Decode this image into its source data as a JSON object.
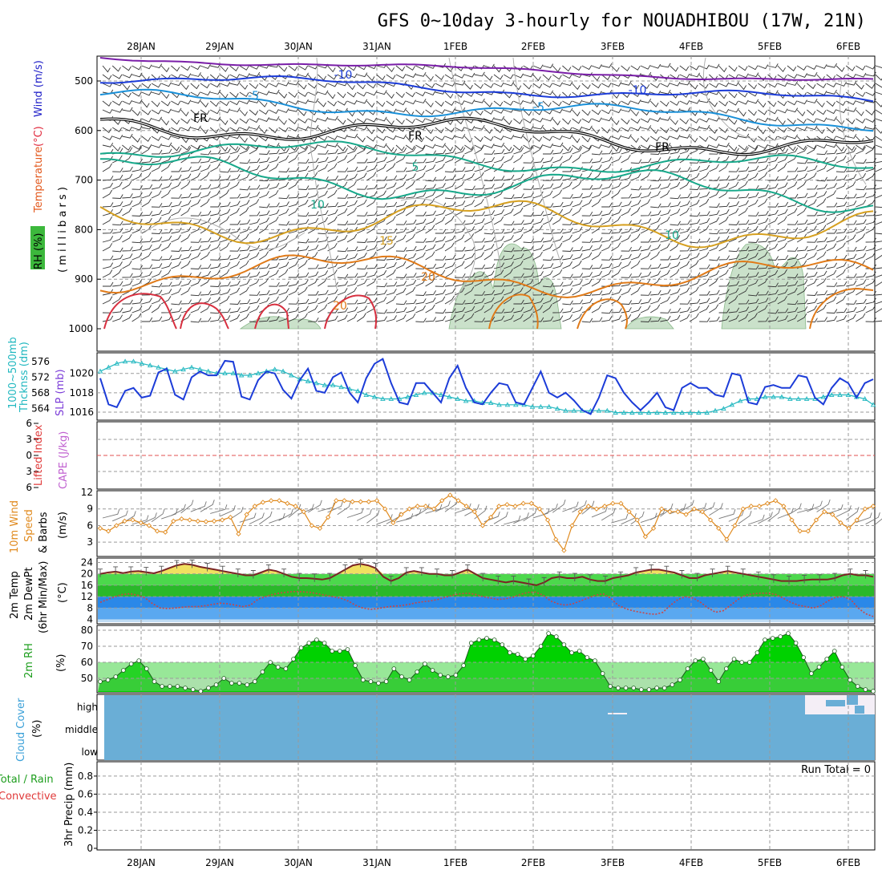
{
  "title": "GFS 0~10day 3-hourly for NOUADHIBOU (17W, 21N)",
  "dates": [
    "28JAN",
    "29JAN",
    "30JAN",
    "31JAN",
    "1FEB",
    "2FEB",
    "3FEB",
    "4FEB",
    "5FEB",
    "6FEB"
  ],
  "colors": {
    "grid": "#a0a0a0",
    "slp": "#1c3cd8",
    "thickness": "#22b8c0",
    "wind10m": "#e08a1e",
    "temp": "#7a2424",
    "dewpt": "#b04a32",
    "rh_dark": "#00d200",
    "rh_light": "#5fd85f",
    "cloud_bg": "#6aaed6",
    "cloud_white": "#f4eef6",
    "li_zero": "#e05050",
    "humid_shade": "#b8d7b8"
  },
  "panels": {
    "upper": {
      "labels": {
        "rh": "RH (%)",
        "temperature": "Temperature",
        "temp_unit": "(°C)",
        "wind": "Wind (m/s)",
        "axis": "( m i l l i b a r s )"
      },
      "y_ticks": [
        "500",
        "600",
        "700",
        "800",
        "900",
        "1000"
      ],
      "contour_labels": [
        {
          "text": "-10",
          "color": "#1c3cd8"
        },
        {
          "text": "-10",
          "color": "#1c3cd8"
        },
        {
          "text": "-5",
          "color": "#1a90d8"
        },
        {
          "text": "-5",
          "color": "#1a90d8"
        },
        {
          "text": "FR",
          "color": "#000000"
        },
        {
          "text": "FR",
          "color": "#000000"
        },
        {
          "text": "FR",
          "color": "#000000"
        },
        {
          "text": "5",
          "color": "#17a88a"
        },
        {
          "text": "10",
          "color": "#17a88a"
        },
        {
          "text": "10",
          "color": "#17a88a"
        },
        {
          "text": "15",
          "color": "#d6a020"
        },
        {
          "text": "20",
          "color": "#e07a18"
        },
        {
          "text": "20",
          "color": "#e07a18"
        }
      ]
    },
    "slp_thickness": {
      "labels": {
        "thickness": "1000~500mb",
        "thickness2": "Thcknss (dm)",
        "slp": "SLP (mb)"
      },
      "left_ticks": [
        "576",
        "572",
        "568",
        "564"
      ],
      "right_ticks": [
        "1020",
        "1018",
        "1016"
      ]
    },
    "cape_li": {
      "labels": {
        "li": "Lifted Index",
        "cape": "CAPE (J/kg)"
      },
      "y_ticks": [
        "6",
        "3",
        "0",
        "3",
        "6"
      ]
    },
    "wind10m": {
      "labels": {
        "l1": "10m Wind",
        "l2": "Speed",
        "l3": "& Barbs",
        "unit": "(m/s)"
      },
      "y_ticks": [
        "12",
        "9",
        "6",
        "3"
      ]
    },
    "temp2m": {
      "labels": {
        "l1": "2m Temp",
        "l2": "2m DewPt",
        "l3": "(6hr Min/Max)",
        "unit": "(°C)"
      },
      "y_ticks": [
        "24",
        "20",
        "16",
        "12",
        "8",
        "4"
      ]
    },
    "rh2m": {
      "labels": {
        "l1": "2m RH",
        "unit": "(%)"
      },
      "y_ticks": [
        "80",
        "70",
        "60",
        "50"
      ]
    },
    "cloud": {
      "labels": {
        "l1": "Cloud Cover",
        "unit": "(%)"
      },
      "levels": [
        "high",
        "middle",
        "low"
      ]
    },
    "precip": {
      "labels": {
        "l1": "Total / Rain",
        "l2": "Convective",
        "l3": "3hr Precip (mm)"
      },
      "y_ticks": [
        "0.8",
        "0.6",
        "0.4",
        "0.2",
        "0"
      ],
      "run_total": "Run Total = 0"
    }
  },
  "chart_data": [
    {
      "type": "line",
      "title": "GFS 0~10day 3-hourly for NOUADHIBOU (17W, 21N)",
      "ylabel": "SLP (mb)",
      "series": [
        {
          "name": "SLP (mb)",
          "values": [
            1019.5,
            1016.8,
            1016.5,
            1018.2,
            1018.5,
            1017.5,
            1017.7,
            1020.1,
            1020.5,
            1017.8,
            1017.3,
            1019.6,
            1020.2,
            1019.8,
            1019.8,
            1021.3,
            1021.2,
            1017.6,
            1017.3,
            1019.3,
            1020.2,
            1020.0,
            1018.3,
            1017.4,
            1019.3,
            1020.5,
            1018.2,
            1018.0,
            1019.6,
            1020.1,
            1018.0,
            1017.0,
            1019.5,
            1021.0,
            1021.5,
            1019.0,
            1017.0,
            1016.8,
            1019.0,
            1019.0,
            1018.0,
            1017.0,
            1019.5,
            1020.8,
            1018.5,
            1017.0,
            1016.8,
            1018.0,
            1019.0,
            1018.8,
            1017.0,
            1016.8,
            1018.5,
            1020.2,
            1018.0,
            1017.5,
            1018.0,
            1017.2,
            1016.2,
            1015.8,
            1017.5,
            1019.8,
            1019.5,
            1018.0,
            1017.0,
            1016.2,
            1017.0,
            1018.0,
            1016.5,
            1016.2,
            1018.5,
            1019.0,
            1018.5,
            1018.5,
            1017.8,
            1017.6,
            1020.0,
            1019.8,
            1017.0,
            1016.8,
            1018.6,
            1018.8,
            1018.5,
            1018.5,
            1019.8,
            1019.6,
            1017.5,
            1016.8,
            1018.5,
            1019.5,
            1019.0,
            1017.5,
            1019.0,
            1019.4
          ]
        },
        {
          "name": "1000~500mb Thcknss (dm)",
          "values": [
            573.5,
            574.5,
            575.5,
            576.0,
            576.0,
            575.5,
            575.0,
            574.5,
            574.0,
            573.5,
            574.0,
            574.5,
            574.0,
            573.5,
            573.0,
            573.0,
            573.0,
            572.5,
            572.5,
            573.0,
            573.5,
            574.0,
            573.5,
            572.5,
            571.5,
            571.0,
            570.5,
            570.0,
            570.0,
            569.5,
            569.0,
            568.5,
            567.5,
            567.0,
            566.5,
            566.5,
            566.5,
            567.0,
            567.5,
            568.0,
            568.0,
            567.5,
            567.0,
            566.5,
            566.0,
            566.0,
            565.5,
            565.5,
            565.0,
            565.0,
            565.0,
            565.0,
            564.5,
            564.5,
            564.5,
            564.0,
            563.5,
            563.5,
            563.5,
            563.5,
            563.5,
            563.5,
            563.0,
            563.0,
            563.0,
            563.0,
            563.0,
            563.0,
            563.0,
            563.0,
            563.0,
            563.0,
            563.0,
            563.0,
            563.5,
            564.0,
            565.0,
            566.0,
            566.5,
            566.5,
            567.0,
            567.0,
            567.0,
            566.5,
            566.5,
            566.5,
            566.5,
            567.0,
            567.5,
            567.5,
            567.5,
            567.0,
            566.5,
            565.0
          ]
        }
      ],
      "ylim": [
        1015.5,
        1021.8
      ],
      "y2lim": [
        561.5,
        578.0
      ]
    },
    {
      "type": "line",
      "title": "",
      "ylabel": "Lifted Index / CAPE (J/kg)",
      "series": [],
      "ylim": [
        -6,
        6
      ]
    },
    {
      "type": "line",
      "title": "",
      "ylabel": "10m Wind Speed (m/s)",
      "series": [
        {
          "name": "10m Wind Speed",
          "values": [
            5.5,
            5.0,
            6.0,
            6.8,
            7.0,
            6.5,
            6.0,
            5.0,
            4.8,
            6.8,
            7.2,
            7.0,
            6.8,
            6.7,
            6.8,
            7.0,
            7.5,
            4.5,
            8.0,
            9.5,
            10.2,
            10.5,
            10.5,
            10.0,
            9.5,
            8.5,
            6.0,
            5.5,
            7.5,
            10.5,
            10.5,
            10.3,
            10.3,
            10.3,
            10.5,
            9.0,
            6.5,
            8.0,
            9.0,
            9.5,
            9.5,
            9.0,
            10.5,
            11.5,
            10.5,
            9.5,
            8.5,
            6.0,
            7.5,
            9.5,
            9.8,
            9.5,
            10.0,
            10.0,
            9.0,
            7.0,
            3.5,
            1.5,
            6.0,
            8.5,
            9.5,
            9.0,
            9.5,
            10.0,
            10.0,
            8.5,
            7.0,
            4.0,
            5.5,
            9.0,
            8.5,
            8.5,
            8.0,
            9.0,
            8.5,
            7.0,
            5.5,
            3.5,
            6.0,
            9.0,
            9.5,
            9.5,
            10.0,
            10.5,
            9.5,
            7.0,
            5.0,
            5.0,
            7.0,
            8.5,
            8.0,
            6.5,
            5.5,
            7.0,
            9.0,
            9.5
          ]
        }
      ],
      "ylim": [
        1,
        12
      ]
    },
    {
      "type": "line",
      "title": "",
      "ylabel": "2m Temp / 2m DewPt (°C)",
      "series": [
        {
          "name": "2m Temp",
          "values": [
            20.0,
            20.5,
            20.8,
            20.3,
            20.8,
            21.0,
            20.6,
            20.2,
            21.0,
            22.0,
            23.0,
            23.5,
            23.2,
            22.5,
            22.0,
            21.5,
            21.0,
            20.5,
            20.0,
            19.5,
            19.5,
            20.5,
            21.5,
            21.0,
            20.0,
            19.0,
            18.5,
            18.5,
            18.3,
            18.0,
            18.5,
            20.0,
            21.5,
            23.0,
            23.5,
            23.0,
            22.0,
            19.0,
            17.5,
            18.5,
            20.5,
            21.0,
            20.5,
            20.0,
            20.0,
            19.5,
            19.5,
            20.5,
            21.5,
            20.0,
            18.5,
            18.0,
            17.5,
            17.0,
            17.5,
            17.0,
            16.5,
            16.0,
            17.0,
            18.5,
            19.0,
            18.5,
            18.5,
            19.0,
            18.0,
            17.5,
            17.5,
            18.5,
            19.0,
            19.5,
            20.5,
            21.0,
            21.5,
            21.5,
            21.0,
            20.5,
            19.5,
            18.5,
            18.5,
            19.5,
            20.0,
            20.5,
            21.0,
            20.5,
            20.0,
            19.5,
            19.0,
            18.5,
            18.0,
            17.5,
            17.5,
            17.5,
            17.8,
            18.0,
            18.0,
            18.0,
            18.5,
            19.5,
            20.0,
            19.5,
            19.5,
            19.0
          ]
        },
        {
          "name": "2m DewPt",
          "values": [
            10.0,
            11.0,
            12.0,
            12.8,
            13.0,
            12.5,
            11.5,
            9.5,
            8.0,
            7.8,
            8.0,
            8.3,
            8.5,
            8.5,
            8.8,
            9.3,
            9.7,
            9.5,
            9.0,
            8.5,
            9.0,
            11.0,
            12.0,
            12.8,
            13.3,
            13.6,
            13.8,
            13.7,
            13.5,
            13.0,
            12.5,
            12.0,
            11.5,
            10.5,
            9.0,
            8.0,
            7.5,
            7.8,
            8.3,
            8.6,
            8.8,
            9.2,
            9.8,
            10.2,
            10.5,
            11.0,
            11.8,
            12.5,
            13.0,
            13.2,
            12.8,
            12.0,
            11.5,
            11.0,
            11.2,
            11.8,
            12.8,
            13.5,
            13.6,
            12.5,
            10.5,
            9.5,
            9.0,
            9.5,
            10.5,
            11.5,
            12.5,
            13.0,
            11.5,
            9.0,
            7.8,
            7.0,
            6.5,
            6.0,
            5.8,
            6.5,
            9.0,
            11.0,
            12.0,
            11.5,
            10.0,
            8.0,
            6.5,
            7.0,
            9.0,
            11.0,
            12.5,
            13.0,
            13.2,
            13.2,
            12.8,
            11.5,
            10.0,
            9.0,
            8.5,
            8.0,
            8.8,
            10.5,
            11.8,
            12.0,
            11.0,
            8.0,
            6.0,
            5.0
          ]
        }
      ],
      "ylim": [
        3,
        25
      ]
    },
    {
      "type": "area",
      "title": "",
      "ylabel": "2m RH (%)",
      "series": [
        {
          "name": "2m RH",
          "values": [
            48,
            49,
            51,
            55,
            59,
            61,
            56,
            48,
            45,
            45,
            45,
            44,
            43,
            42,
            44,
            46,
            50,
            47,
            47,
            46,
            48,
            54,
            60,
            57,
            56,
            62,
            69,
            72,
            74,
            72,
            67,
            67,
            68,
            58,
            49,
            48,
            47,
            48,
            56,
            51,
            49,
            54,
            59,
            55,
            52,
            51,
            52,
            58,
            72,
            74,
            75,
            74,
            71,
            66,
            65,
            62,
            64,
            70,
            78,
            76,
            71,
            66,
            67,
            63,
            61,
            53,
            45,
            44,
            44,
            44,
            43,
            43,
            44,
            44,
            46,
            49,
            56,
            61,
            62,
            55,
            48,
            56,
            62,
            60,
            60,
            66,
            74,
            75,
            76,
            78,
            72,
            63,
            53,
            57,
            62,
            67,
            57,
            49,
            45,
            43,
            42
          ]
        }
      ],
      "ylim": [
        42,
        81
      ]
    },
    {
      "type": "area",
      "title": "",
      "ylabel": "3hr Precip (mm)",
      "series": [],
      "ylim": [
        0,
        0.95
      ]
    }
  ]
}
